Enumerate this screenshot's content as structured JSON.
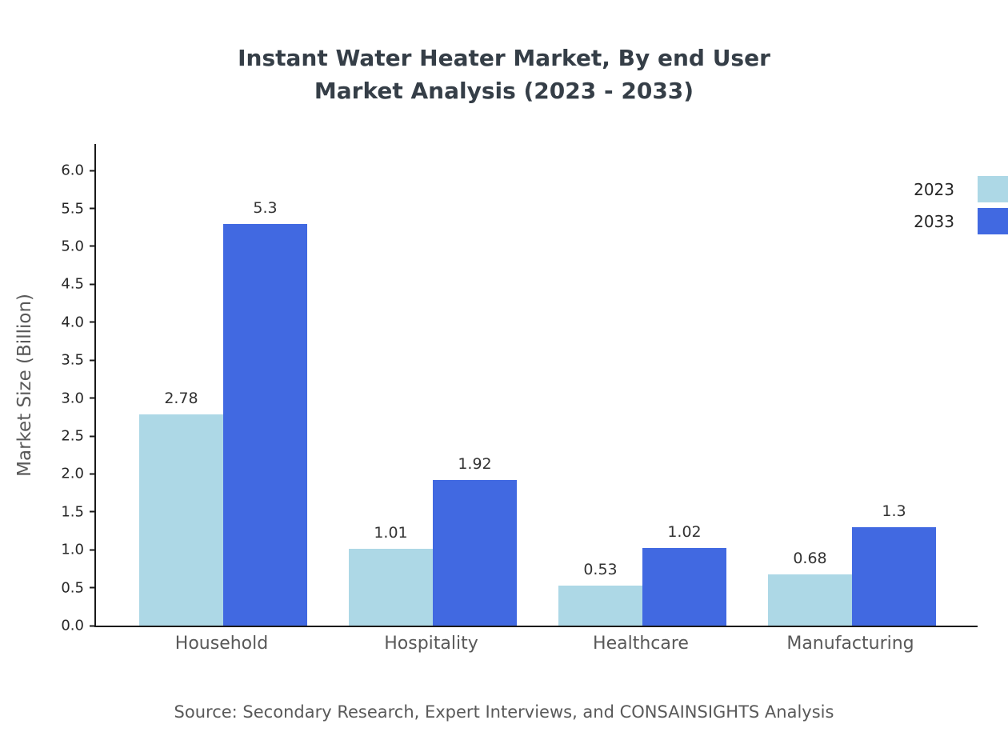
{
  "title": {
    "line1": "Instant Water Heater Market, By end User",
    "line2": "Market Analysis (2023 - 2033)"
  },
  "source": "Source: Secondary Research, Expert Interviews, and CONSAINSIGHTS Analysis",
  "chart_data": {
    "type": "bar",
    "title": "Instant Water Heater Market, By end User Market Analysis (2023 - 2033)",
    "categories": [
      "Household",
      "Hospitality",
      "Healthcare",
      "Manufacturing"
    ],
    "series": [
      {
        "name": "2023",
        "color": "#ADD8E6",
        "values": [
          2.78,
          1.01,
          0.53,
          0.68
        ]
      },
      {
        "name": "2033",
        "color": "#4169E1",
        "values": [
          5.3,
          1.92,
          1.02,
          1.3
        ]
      }
    ],
    "xlabel": "",
    "ylabel": "Market Size (Billion)",
    "ylim": [
      0,
      6.0
    ],
    "ytick_step": 0.5,
    "grid": false,
    "legend_position": "top-right"
  }
}
